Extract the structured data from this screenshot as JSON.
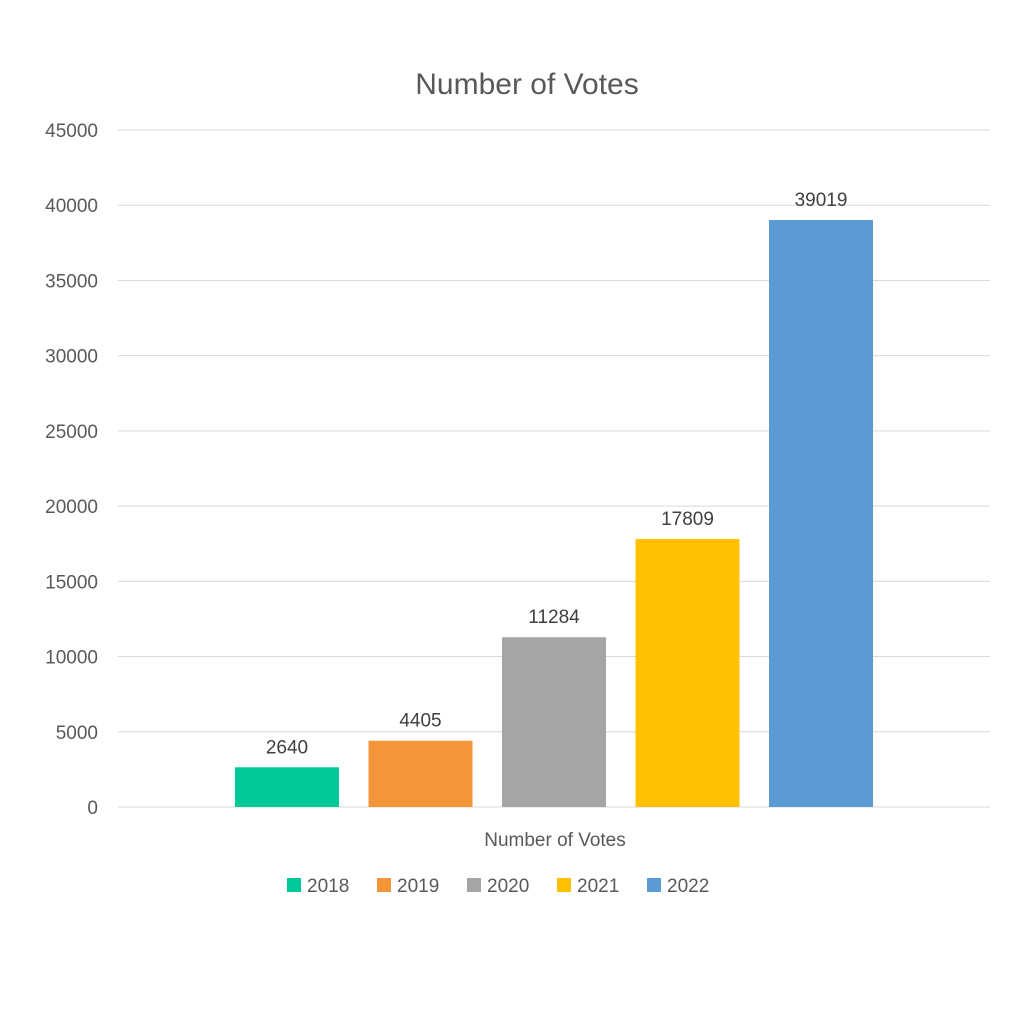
{
  "chart_data": {
    "type": "bar",
    "title": "Number of Votes",
    "categories": [
      "Number of Votes"
    ],
    "series": [
      {
        "name": "2018",
        "values": [
          2640
        ],
        "color": "#00C896"
      },
      {
        "name": "2019",
        "values": [
          4405
        ],
        "color": "#F5953A"
      },
      {
        "name": "2020",
        "values": [
          11284
        ],
        "color": "#A5A5A5"
      },
      {
        "name": "2021",
        "values": [
          17809
        ],
        "color": "#FFC000"
      },
      {
        "name": "2022",
        "values": [
          39019
        ],
        "color": "#5B9BD5"
      }
    ],
    "xlabel": "",
    "ylabel": "",
    "ylim": [
      0,
      45000
    ],
    "y_ticks": [
      0,
      5000,
      10000,
      15000,
      20000,
      25000,
      30000,
      35000,
      40000,
      45000
    ],
    "grid": true,
    "data_labels": true,
    "legend_position": "bottom"
  }
}
